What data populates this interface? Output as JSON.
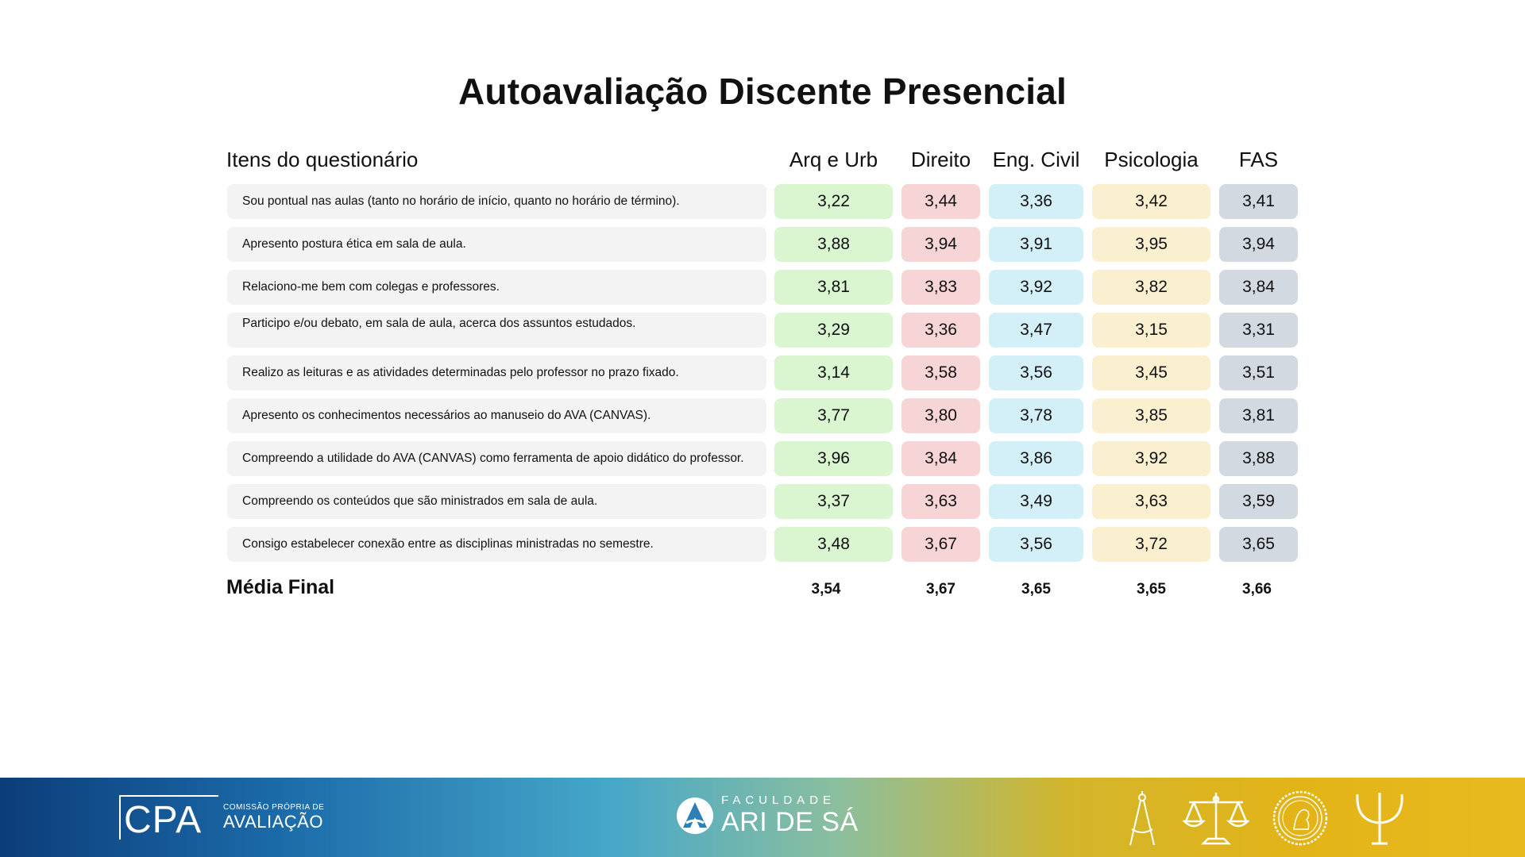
{
  "title": "Autoavaliação Discente Presencial",
  "header": {
    "items_label": "Itens do questionário",
    "columns": [
      "Arq e Urb",
      "Direito",
      "Eng. Civil",
      "Psicologia",
      "FAS"
    ]
  },
  "rows": [
    {
      "item": "Sou pontual nas aulas (tanto no horário de início, quanto no horário de término).",
      "values": [
        "3,22",
        "3,44",
        "3,36",
        "3,42",
        "3,41"
      ]
    },
    {
      "item": "Apresento postura ética em sala de aula.",
      "values": [
        "3,88",
        "3,94",
        "3,91",
        "3,95",
        "3,94"
      ]
    },
    {
      "item": "Relaciono-me bem com colegas e professores.",
      "values": [
        "3,81",
        "3,83",
        "3,92",
        "3,82",
        "3,84"
      ]
    },
    {
      "item": "Participo e/ou debato, em sala de aula, acerca dos assuntos estudados.",
      "values": [
        "3,29",
        "3,36",
        "3,47",
        "3,15",
        "3,31"
      ]
    },
    {
      "item": "Realizo as leituras e as atividades determinadas pelo professor no prazo fixado.",
      "values": [
        "3,14",
        "3,58",
        "3,56",
        "3,45",
        "3,51"
      ]
    },
    {
      "item": "Apresento os conhecimentos necessários ao manuseio do AVA (CANVAS).",
      "values": [
        "3,77",
        "3,80",
        "3,78",
        "3,85",
        "3,81"
      ]
    },
    {
      "item": "Compreendo a utilidade do AVA (CANVAS) como ferramenta de apoio didático do professor.",
      "values": [
        "3,96",
        "3,84",
        "3,86",
        "3,92",
        "3,88"
      ]
    },
    {
      "item": "Compreendo os conteúdos que são ministrados em sala de aula.",
      "values": [
        "3,37",
        "3,63",
        "3,49",
        "3,63",
        "3,59"
      ]
    },
    {
      "item": "Consigo estabelecer conexão entre as disciplinas ministradas no semestre.",
      "values": [
        "3,48",
        "3,67",
        "3,56",
        "3,72",
        "3,65"
      ]
    }
  ],
  "final": {
    "label": "Média Final",
    "values": [
      "3,54",
      "3,67",
      "3,65",
      "3,65",
      "3,66"
    ]
  },
  "footer": {
    "cpa_mark": "CPA",
    "cpa_small": "COMISSÃO PRÓPRIA DE",
    "cpa_big": "AVALIAÇÃO",
    "fas_small": "FACULDADE",
    "fas_big": "ARI DE SÁ",
    "icons": [
      "compass-icon",
      "scales-icon",
      "seal-icon",
      "psi-icon"
    ]
  },
  "colors": {
    "arq": "#d9f6d0",
    "direito": "#f7d4d6",
    "eng": "#d3eff7",
    "psicologia": "#faf0cf",
    "fas": "#d3d9e1",
    "label_bg": "#f3f3f3"
  }
}
